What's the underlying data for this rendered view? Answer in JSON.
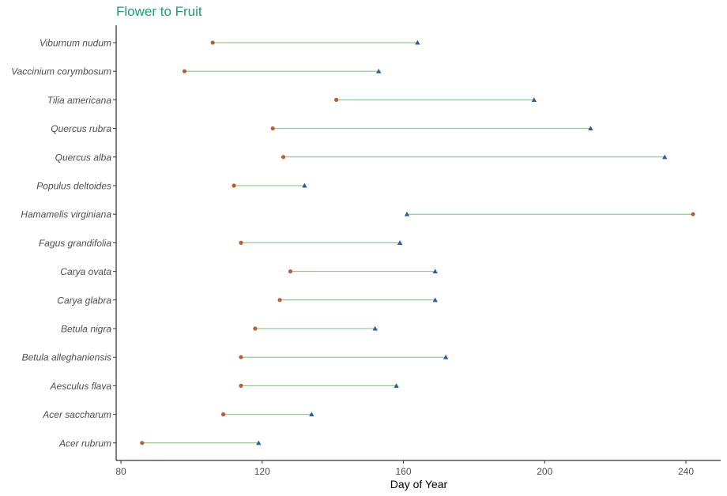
{
  "chart_data": {
    "type": "dumbbell",
    "title": "Flower to Fruit",
    "xlabel": "Day of Year",
    "ylabel": "",
    "xlim": [
      78,
      250
    ],
    "x_ticks": [
      80,
      120,
      160,
      200,
      240
    ],
    "grid": false,
    "colors": {
      "title": "#1a9e77",
      "flower_point": "#b5603a",
      "fruit_point": "#2e5aa8",
      "connector": "#7cbf7c",
      "axis": "#000000",
      "tick_label": "#4d4d4d",
      "category_label": "#4d4d4d"
    },
    "series": [
      {
        "key": "flower",
        "marker": "circle",
        "color": "#b5603a"
      },
      {
        "key": "fruit",
        "marker": "triangle",
        "color": "#2e5aa8"
      }
    ],
    "categories": [
      "Viburnum nudum",
      "Vaccinium corymbosum",
      "Tilia americana",
      "Quercus rubra",
      "Quercus alba",
      "Populus deltoides",
      "Hamamelis virginiana",
      "Fagus grandifolia",
      "Carya ovata",
      "Carya glabra",
      "Betula nigra",
      "Betula alleghaniensis",
      "Aesculus flava",
      "Acer saccharum",
      "Acer rubrum"
    ],
    "flower": [
      106,
      98,
      141,
      123,
      126,
      112,
      242,
      114,
      128,
      125,
      118,
      114,
      114,
      109,
      86
    ],
    "fruit": [
      164,
      153,
      197,
      213,
      234,
      132,
      161,
      159,
      169,
      169,
      152,
      172,
      158,
      134,
      119
    ]
  }
}
